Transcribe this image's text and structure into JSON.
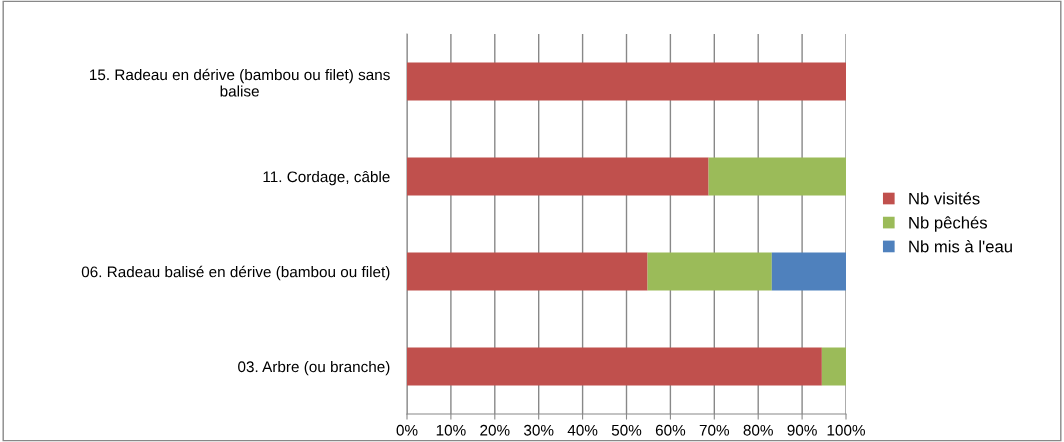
{
  "chart_data": {
    "type": "bar",
    "orientation": "horizontal",
    "stacked": true,
    "categories": [
      "15. Radeau en dérive (bambou ou filet) sans\nbalise",
      "11. Cordage, câble",
      "06. Radeau balisé en dérive (bambou ou filet)",
      "03. Arbre (ou branche)"
    ],
    "series": [
      {
        "name": "Nb visités",
        "color": "#c0504d",
        "values": [
          100,
          68.7,
          54.8,
          94.5
        ]
      },
      {
        "name": "Nb pêchés",
        "color": "#9bbb59",
        "values": [
          0,
          31.3,
          28.3,
          5.5
        ]
      },
      {
        "name": "Nb mis à l'eau",
        "color": "#4f81bd",
        "values": [
          0,
          0,
          16.9,
          0
        ]
      }
    ],
    "xlim": [
      0,
      100
    ],
    "xticks": [
      {
        "value": 0,
        "label": "0%"
      },
      {
        "value": 10,
        "label": "10%"
      },
      {
        "value": 20,
        "label": "20%"
      },
      {
        "value": 30,
        "label": "30%"
      },
      {
        "value": 40,
        "label": "40%"
      },
      {
        "value": 50,
        "label": "50%"
      },
      {
        "value": 60,
        "label": "60%"
      },
      {
        "value": 70,
        "label": "70%"
      },
      {
        "value": 80,
        "label": "80%"
      },
      {
        "value": 90,
        "label": "90%"
      },
      {
        "value": 100,
        "label": "100%"
      }
    ],
    "grid": "x",
    "legend": "right"
  }
}
